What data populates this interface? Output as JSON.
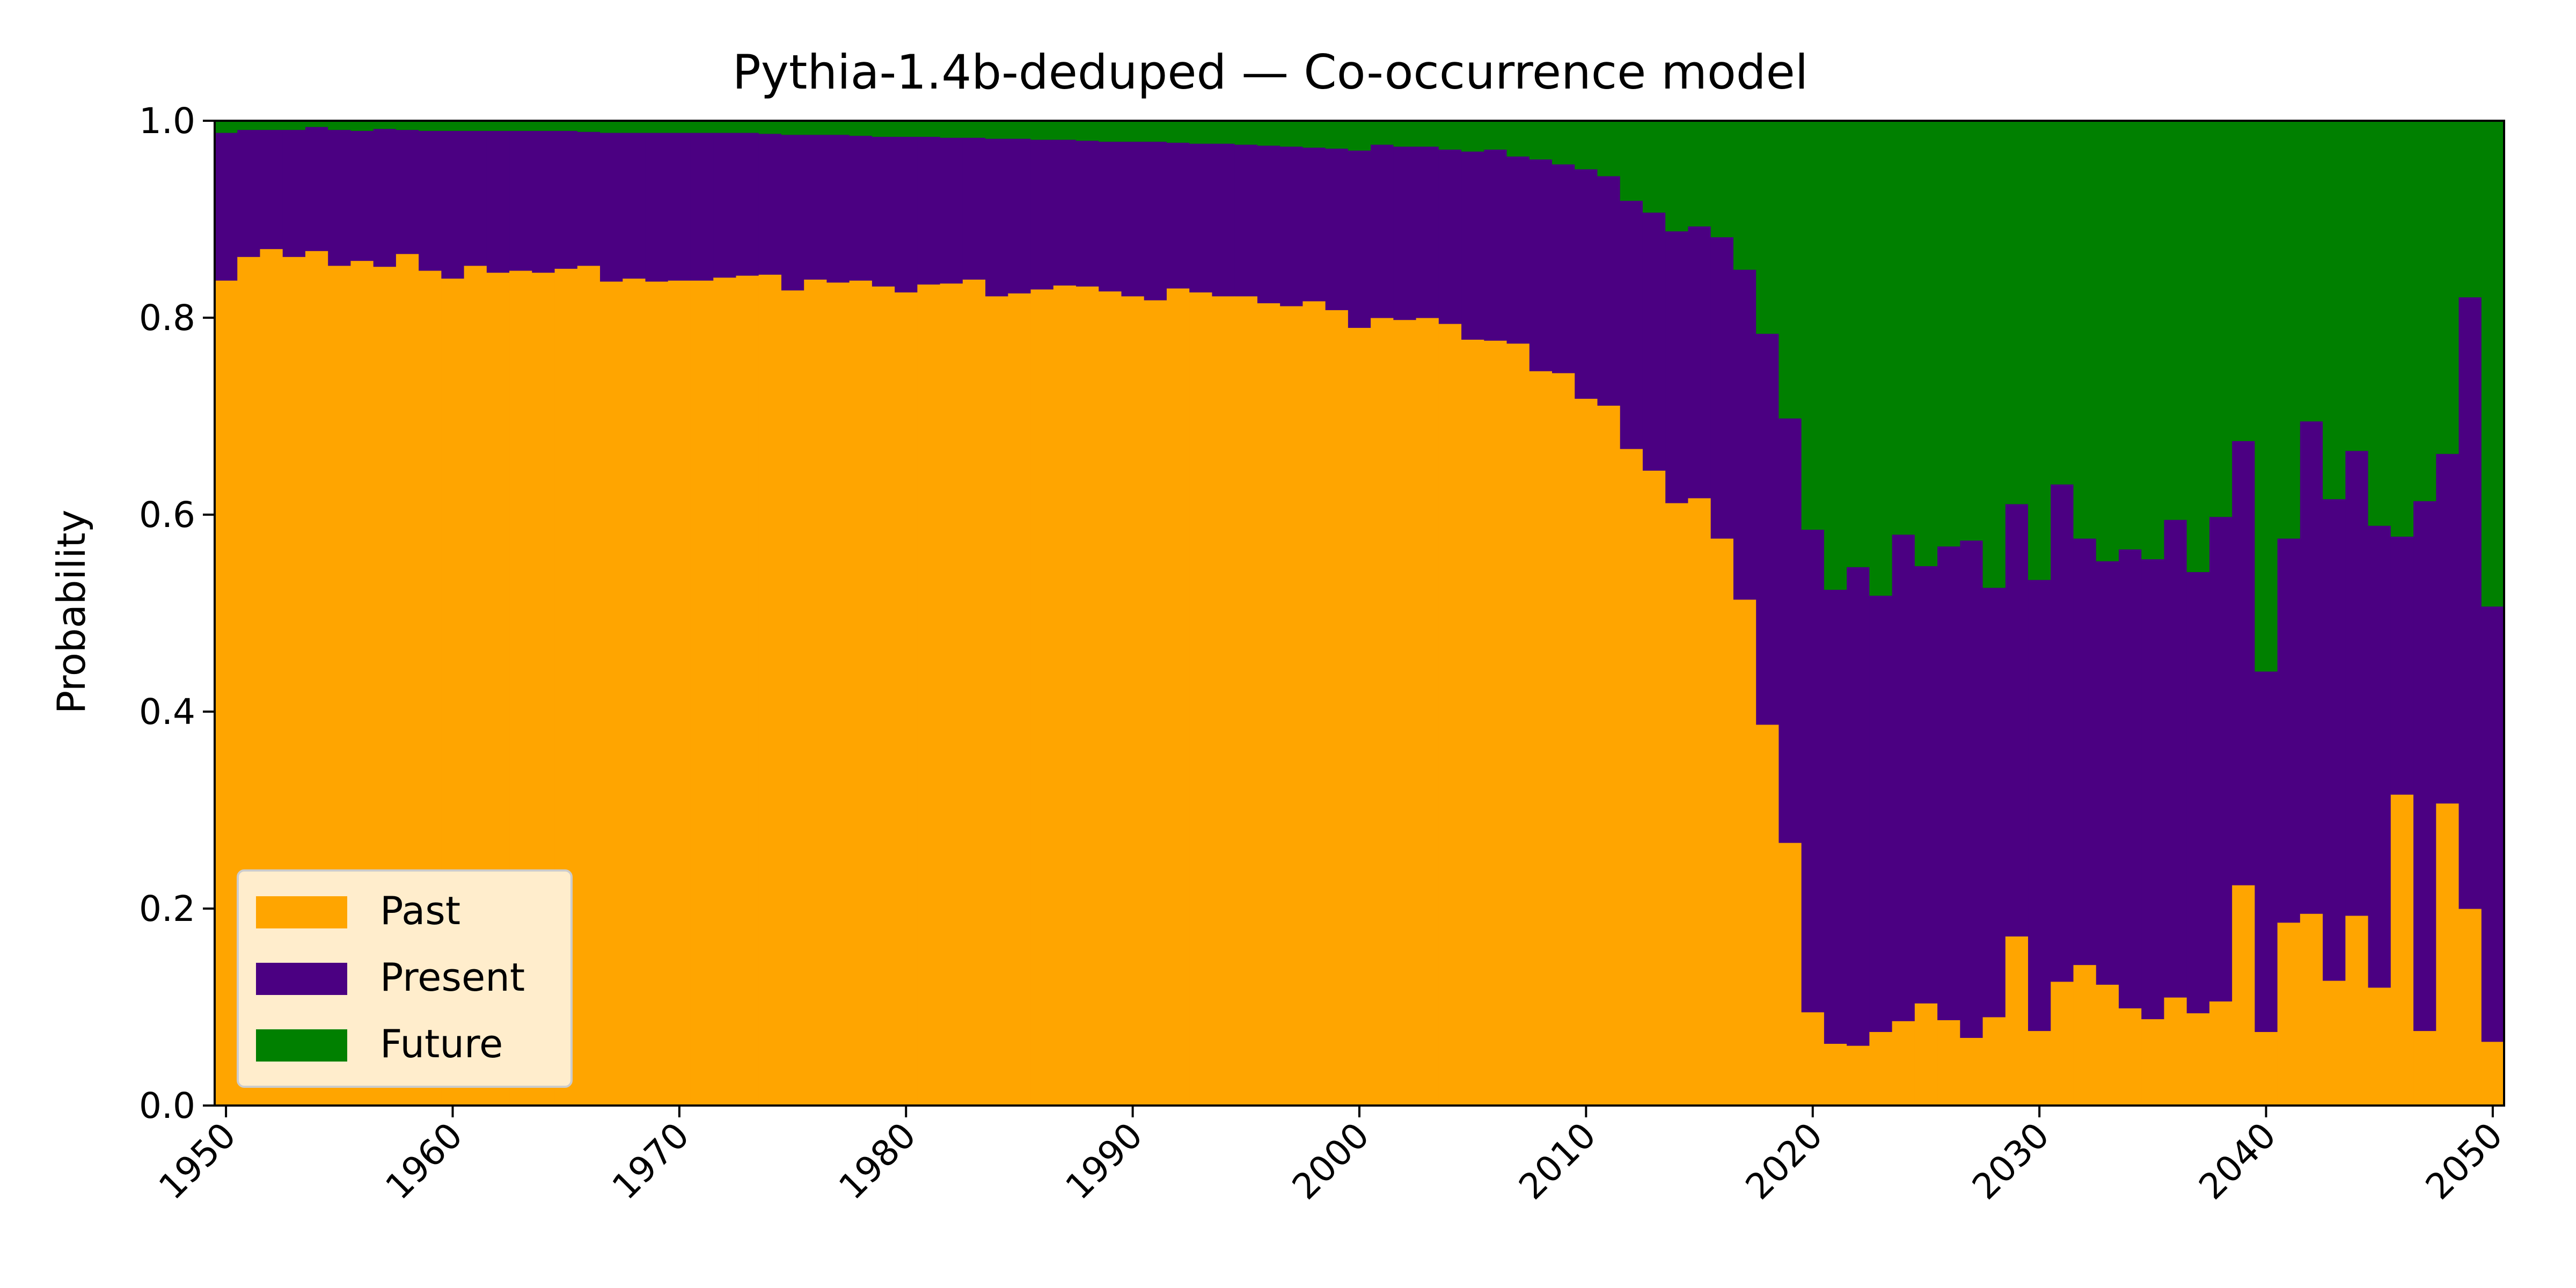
{
  "chart_data": {
    "type": "bar",
    "stacked": true,
    "normalized": true,
    "title": "Pythia-1.4b-deduped — Co-occurrence model",
    "xlabel": "",
    "ylabel": "Probability",
    "xlim": [
      1949.5,
      2050.5
    ],
    "ylim": [
      0,
      1
    ],
    "xticks": [
      1950,
      1960,
      1970,
      1980,
      1990,
      2000,
      2010,
      2020,
      2030,
      2040,
      2050
    ],
    "xtick_labels": [
      "1950",
      "1960",
      "1970",
      "1980",
      "1990",
      "2000",
      "2010",
      "2020",
      "2030",
      "2040",
      "2050"
    ],
    "yticks": [
      0.0,
      0.2,
      0.4,
      0.6,
      0.8,
      1.0
    ],
    "ytick_labels": [
      "0.0",
      "0.2",
      "0.4",
      "0.6",
      "0.8",
      "1.0"
    ],
    "grid": false,
    "legend_position": "lower-left",
    "x": [
      1950,
      1951,
      1952,
      1953,
      1954,
      1955,
      1956,
      1957,
      1958,
      1959,
      1960,
      1961,
      1962,
      1963,
      1964,
      1965,
      1966,
      1967,
      1968,
      1969,
      1970,
      1971,
      1972,
      1973,
      1974,
      1975,
      1976,
      1977,
      1978,
      1979,
      1980,
      1981,
      1982,
      1983,
      1984,
      1985,
      1986,
      1987,
      1988,
      1989,
      1990,
      1991,
      1992,
      1993,
      1994,
      1995,
      1996,
      1997,
      1998,
      1999,
      2000,
      2001,
      2002,
      2003,
      2004,
      2005,
      2006,
      2007,
      2008,
      2009,
      2010,
      2011,
      2012,
      2013,
      2014,
      2015,
      2016,
      2017,
      2018,
      2019,
      2020,
      2021,
      2022,
      2023,
      2024,
      2025,
      2026,
      2027,
      2028,
      2029,
      2030,
      2031,
      2032,
      2033,
      2034,
      2035,
      2036,
      2037,
      2038,
      2039,
      2040,
      2041,
      2042,
      2043,
      2044,
      2045,
      2046,
      2047,
      2048,
      2049,
      2050
    ],
    "series": [
      {
        "name": "Past",
        "color": "#ffa500",
        "values": [
          0.838,
          0.862,
          0.87,
          0.862,
          0.868,
          0.853,
          0.858,
          0.852,
          0.865,
          0.848,
          0.84,
          0.853,
          0.846,
          0.848,
          0.846,
          0.85,
          0.853,
          0.837,
          0.84,
          0.837,
          0.838,
          0.838,
          0.841,
          0.843,
          0.844,
          0.828,
          0.839,
          0.836,
          0.838,
          0.832,
          0.826,
          0.834,
          0.835,
          0.839,
          0.822,
          0.825,
          0.829,
          0.833,
          0.832,
          0.827,
          0.822,
          0.818,
          0.83,
          0.826,
          0.822,
          0.822,
          0.815,
          0.812,
          0.817,
          0.808,
          0.79,
          0.8,
          0.798,
          0.8,
          0.794,
          0.778,
          0.777,
          0.774,
          0.746,
          0.744,
          0.718,
          0.711,
          0.667,
          0.645,
          0.612,
          0.617,
          0.576,
          0.514,
          0.387,
          0.267,
          0.095,
          0.063,
          0.061,
          0.075,
          0.086,
          0.104,
          0.087,
          0.069,
          0.09,
          0.172,
          0.076,
          0.126,
          0.143,
          0.123,
          0.099,
          0.088,
          0.11,
          0.094,
          0.106,
          0.224,
          0.075,
          0.186,
          0.195,
          0.127,
          0.193,
          0.12,
          0.316,
          0.076,
          0.307,
          0.2,
          0.065
        ]
      },
      {
        "name": "Present",
        "color": "#4b0082",
        "values": [
          0.15,
          0.129,
          0.121,
          0.129,
          0.126,
          0.138,
          0.132,
          0.14,
          0.126,
          0.142,
          0.15,
          0.137,
          0.144,
          0.142,
          0.144,
          0.14,
          0.136,
          0.151,
          0.148,
          0.151,
          0.15,
          0.15,
          0.147,
          0.145,
          0.143,
          0.158,
          0.147,
          0.15,
          0.147,
          0.152,
          0.158,
          0.15,
          0.148,
          0.144,
          0.16,
          0.157,
          0.152,
          0.148,
          0.148,
          0.152,
          0.157,
          0.161,
          0.148,
          0.151,
          0.155,
          0.154,
          0.16,
          0.162,
          0.156,
          0.164,
          0.18,
          0.176,
          0.176,
          0.174,
          0.177,
          0.191,
          0.194,
          0.19,
          0.215,
          0.212,
          0.233,
          0.233,
          0.252,
          0.262,
          0.276,
          0.276,
          0.306,
          0.335,
          0.397,
          0.431,
          0.49,
          0.461,
          0.486,
          0.443,
          0.494,
          0.444,
          0.481,
          0.505,
          0.436,
          0.439,
          0.458,
          0.505,
          0.433,
          0.43,
          0.466,
          0.467,
          0.485,
          0.448,
          0.492,
          0.451,
          0.366,
          0.39,
          0.5,
          0.489,
          0.472,
          0.469,
          0.262,
          0.538,
          0.355,
          0.621,
          0.442
        ]
      },
      {
        "name": "Future",
        "color": "#008000",
        "values": [
          0.012,
          0.009,
          0.009,
          0.009,
          0.006,
          0.009,
          0.01,
          0.008,
          0.009,
          0.01,
          0.01,
          0.01,
          0.01,
          0.01,
          0.01,
          0.01,
          0.011,
          0.012,
          0.012,
          0.012,
          0.012,
          0.012,
          0.012,
          0.012,
          0.013,
          0.014,
          0.014,
          0.014,
          0.015,
          0.016,
          0.016,
          0.016,
          0.017,
          0.017,
          0.018,
          0.018,
          0.019,
          0.019,
          0.02,
          0.021,
          0.021,
          0.021,
          0.022,
          0.023,
          0.023,
          0.024,
          0.025,
          0.026,
          0.027,
          0.028,
          0.03,
          0.024,
          0.026,
          0.026,
          0.029,
          0.031,
          0.029,
          0.036,
          0.039,
          0.044,
          0.049,
          0.056,
          0.081,
          0.093,
          0.112,
          0.107,
          0.118,
          0.151,
          0.216,
          0.302,
          0.415,
          0.476,
          0.453,
          0.482,
          0.42,
          0.452,
          0.432,
          0.426,
          0.474,
          0.389,
          0.466,
          0.369,
          0.424,
          0.447,
          0.435,
          0.445,
          0.405,
          0.458,
          0.402,
          0.325,
          0.559,
          0.424,
          0.305,
          0.384,
          0.335,
          0.411,
          0.422,
          0.386,
          0.338,
          0.179,
          0.493
        ]
      }
    ]
  }
}
